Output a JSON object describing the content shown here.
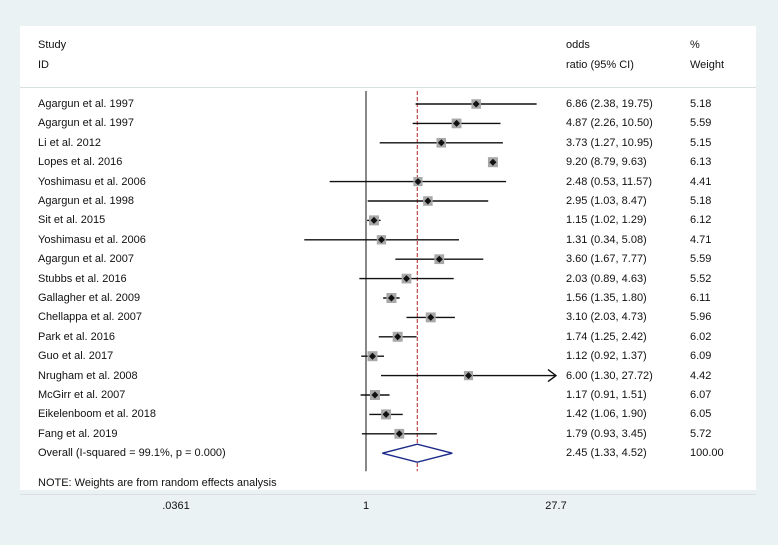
{
  "chart_data": {
    "type": "forest",
    "headers": {
      "study_line1": "Study",
      "study_line2": "ID",
      "or_line1": "odds",
      "or_line2": "ratio (95% CI)",
      "weight_line1": "%",
      "weight_line2": "Weight"
    },
    "studies": [
      {
        "label": "Agargun et al. 1997",
        "or": 6.86,
        "lo": 2.38,
        "hi": 19.75,
        "ci_text": "6.86 (2.38, 19.75)",
        "weight": "5.18"
      },
      {
        "label": "Agargun et al. 1997",
        "or": 4.87,
        "lo": 2.26,
        "hi": 10.5,
        "ci_text": "4.87 (2.26, 10.50)",
        "weight": "5.59"
      },
      {
        "label": "Li et al. 2012",
        "or": 3.73,
        "lo": 1.27,
        "hi": 10.95,
        "ci_text": "3.73 (1.27, 10.95)",
        "weight": "5.15"
      },
      {
        "label": "Lopes et al. 2016",
        "or": 9.2,
        "lo": 8.79,
        "hi": 9.63,
        "ci_text": "9.20 (8.79, 9.63)",
        "weight": "6.13"
      },
      {
        "label": "Yoshimasu et al. 2006",
        "or": 2.48,
        "lo": 0.53,
        "hi": 11.57,
        "ci_text": "2.48 (0.53, 11.57)",
        "weight": "4.41"
      },
      {
        "label": "Agargun et al. 1998",
        "or": 2.95,
        "lo": 1.03,
        "hi": 8.47,
        "ci_text": "2.95 (1.03, 8.47)",
        "weight": "5.18"
      },
      {
        "label": "Sit et al. 2015",
        "or": 1.15,
        "lo": 1.02,
        "hi": 1.29,
        "ci_text": "1.15 (1.02, 1.29)",
        "weight": "6.12"
      },
      {
        "label": "Yoshimasu et al. 2006",
        "or": 1.31,
        "lo": 0.34,
        "hi": 5.08,
        "ci_text": "1.31 (0.34, 5.08)",
        "weight": "4.71"
      },
      {
        "label": "Agargun et al. 2007",
        "or": 3.6,
        "lo": 1.67,
        "hi": 7.77,
        "ci_text": "3.60 (1.67, 7.77)",
        "weight": "5.59"
      },
      {
        "label": "Stubbs et al. 2016",
        "or": 2.03,
        "lo": 0.89,
        "hi": 4.63,
        "ci_text": "2.03 (0.89, 4.63)",
        "weight": "5.52"
      },
      {
        "label": "Gallagher et al. 2009",
        "or": 1.56,
        "lo": 1.35,
        "hi": 1.8,
        "ci_text": "1.56 (1.35, 1.80)",
        "weight": "6.11"
      },
      {
        "label": "Chellappa et al. 2007",
        "or": 3.1,
        "lo": 2.03,
        "hi": 4.73,
        "ci_text": "3.10 (2.03, 4.73)",
        "weight": "5.96"
      },
      {
        "label": "Park et al. 2016",
        "or": 1.74,
        "lo": 1.25,
        "hi": 2.42,
        "ci_text": "1.74 (1.25, 2.42)",
        "weight": "6.02"
      },
      {
        "label": "Guo et al. 2017",
        "or": 1.12,
        "lo": 0.92,
        "hi": 1.37,
        "ci_text": "1.12 (0.92, 1.37)",
        "weight": "6.09"
      },
      {
        "label": "Nrugham et al. 2008",
        "or": 6.0,
        "lo": 1.3,
        "hi": 27.72,
        "ci_text": "6.00 (1.30, 27.72)",
        "weight": "4.42",
        "arrow": true
      },
      {
        "label": "McGirr et al. 2007",
        "or": 1.17,
        "lo": 0.91,
        "hi": 1.51,
        "ci_text": "1.17 (0.91, 1.51)",
        "weight": "6.07"
      },
      {
        "label": "Eikelenboom et al. 2018",
        "or": 1.42,
        "lo": 1.06,
        "hi": 1.9,
        "ci_text": "1.42 (1.06, 1.90)",
        "weight": "6.05"
      },
      {
        "label": "Fang et al. 2019",
        "or": 1.79,
        "lo": 0.93,
        "hi": 3.45,
        "ci_text": "1.79 (0.93, 3.45)",
        "weight": "5.72"
      }
    ],
    "overall": {
      "label": "Overall  (I-squared = 99.1%, p = 0.000)",
      "or": 2.45,
      "lo": 1.33,
      "hi": 4.52,
      "ci_text": "2.45 (1.33, 4.52)",
      "weight": "100.00"
    },
    "note": "NOTE: Weights are from random effects analysis",
    "x_axis": {
      "scale": "log",
      "range": [
        0.0361,
        27.7
      ],
      "ticks": [
        {
          "value": 0.0361,
          "label": ".0361"
        },
        {
          "value": 1,
          "label": "1"
        },
        {
          "value": 27.7,
          "label": "27.7"
        }
      ]
    },
    "colors": {
      "line": "#111111",
      "box": "#a8a8a8",
      "diamond": "#1b2a8a",
      "overall_line": "#b22222",
      "background": "#eaf2f3",
      "panel": "#ffffff"
    }
  }
}
